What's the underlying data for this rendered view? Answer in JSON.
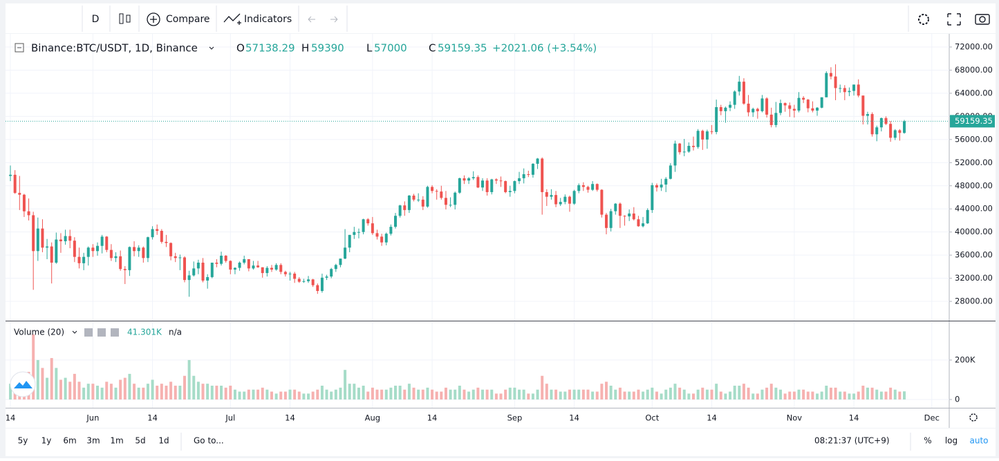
{
  "toolbar": {
    "interval": "D",
    "compare": "Compare",
    "indicators": "Indicators"
  },
  "chart_data": {
    "type": "candlestick",
    "symbol": "Binance:BTC/USDT, 1D, Binance",
    "legend_labels": {
      "open": "O",
      "high": "H",
      "low": "L",
      "close": "C"
    },
    "change": "+2021.06 (+3.54%)",
    "up_color": "#26a69a",
    "down_color": "#ef5350",
    "volume_up_color": "#a6dcc8",
    "volume_down_color": "#f6b1b0",
    "open": [
      49700,
      49900,
      46760,
      46450,
      43580,
      42900,
      36700,
      40600,
      37300,
      37500,
      34700,
      38700,
      38400,
      39300,
      38500,
      35700,
      34600,
      35700,
      37300,
      36700,
      37600,
      39200,
      36900,
      35500,
      35800,
      33600,
      33400,
      37400,
      36700,
      37300,
      35500,
      39100,
      40500,
      40200,
      38300,
      38100,
      35800,
      35500,
      35600,
      31700,
      32500,
      33700,
      34700,
      31600,
      32200,
      34700,
      34500,
      35900,
      35000,
      33500,
      33800,
      34700,
      35300,
      33700,
      34200,
      33900,
      32900,
      33800,
      33500,
      34300,
      33100,
      32700,
      32800,
      31900,
      31400,
      31500,
      31800,
      30800,
      29800,
      32100,
      32300,
      33600,
      34300,
      35400,
      37300,
      39500,
      40000,
      40000,
      42200,
      41500,
      39800,
      39200,
      38200,
      39700,
      40900,
      42800,
      44600,
      43800,
      46300,
      45600,
      45600,
      44400,
      47800,
      47100,
      47000,
      45900,
      44700,
      44700,
      46800,
      49300,
      48900,
      49300,
      49500,
      47700,
      48900,
      46900,
      49100,
      48900,
      48800,
      46900,
      47100,
      48800,
      49300,
      50000,
      49900,
      51800,
      52700,
      46900,
      46100,
      46400,
      44800,
      45200,
      46100,
      44900,
      47100,
      48100,
      47800,
      47300,
      48300,
      47300,
      43000,
      40700,
      43600,
      44900,
      42800,
      42700,
      43200,
      42200,
      41000,
      41500,
      43800,
      48100,
      47700,
      48200,
      49200,
      51500,
      55300,
      53800,
      53900,
      54900,
      54700,
      57500,
      56000,
      57400,
      57300,
      61600,
      60900,
      61500,
      62000,
      64300,
      66000,
      62200,
      60700,
      61300,
      60900,
      63100,
      60300,
      58500,
      60600,
      62300,
      61900,
      61300,
      61000,
      63200,
      62900,
      61400,
      61000,
      61500,
      63300,
      67500,
      66900,
      64900,
      64900,
      64200,
      64400,
      65500,
      63600,
      60100,
      60400,
      56900,
      58100,
      59700,
      58700,
      56300,
      57600,
      57138.29
    ],
    "high": [
      51500,
      50700,
      49700,
      46600,
      45800,
      43500,
      42500,
      42200,
      38800,
      38200,
      39900,
      39800,
      40400,
      40400,
      39100,
      37300,
      36400,
      37500,
      37900,
      38200,
      39500,
      39300,
      37900,
      36500,
      36800,
      34100,
      37500,
      38400,
      37700,
      37500,
      39200,
      41000,
      41300,
      40500,
      39500,
      38200,
      36400,
      36100,
      35800,
      33300,
      34900,
      35200,
      35500,
      32700,
      34700,
      35300,
      36600,
      36000,
      35100,
      33900,
      34900,
      35900,
      35300,
      35000,
      35000,
      33900,
      34100,
      34300,
      34600,
      34600,
      33300,
      33100,
      33100,
      32200,
      31900,
      32400,
      31900,
      31100,
      32800,
      32600,
      33800,
      34500,
      35400,
      40500,
      39500,
      40900,
      40600,
      42300,
      42400,
      42600,
      40400,
      39700,
      39900,
      41300,
      43300,
      44700,
      45300,
      46400,
      46600,
      46700,
      46200,
      48000,
      48100,
      47400,
      48000,
      47100,
      46000,
      47000,
      49400,
      49800,
      49500,
      50500,
      49800,
      49300,
      49300,
      49200,
      49300,
      49600,
      48900,
      48000,
      48900,
      50400,
      51000,
      50600,
      51900,
      52800,
      52900,
      47400,
      47400,
      47100,
      45900,
      46500,
      46300,
      47300,
      48400,
      48600,
      48000,
      48800,
      48400,
      47400,
      43300,
      44000,
      45000,
      45100,
      42900,
      43900,
      44300,
      42800,
      42600,
      44100,
      48500,
      48400,
      49200,
      49500,
      51900,
      55800,
      55400,
      56100,
      55500,
      56500,
      57800,
      57700,
      57700,
      58500,
      62900,
      62000,
      61700,
      62600,
      64500,
      67000,
      66600,
      63700,
      61500,
      61500,
      63700,
      63300,
      61500,
      62500,
      62900,
      62400,
      62400,
      62000,
      64200,
      63500,
      63000,
      62600,
      61600,
      63300,
      67800,
      68500,
      69000,
      65500,
      65400,
      65000,
      65500,
      66400,
      63600,
      60800,
      60700,
      58400,
      59800,
      60000,
      59200,
      57800,
      57800,
      59390
    ],
    "low": [
      48800,
      46600,
      43800,
      42600,
      42000,
      30000,
      35000,
      36500,
      35300,
      31100,
      34500,
      36400,
      37800,
      37200,
      34800,
      33700,
      33400,
      34200,
      35700,
      35900,
      36300,
      36500,
      35000,
      34800,
      33300,
      31000,
      32400,
      35800,
      35700,
      34700,
      34800,
      38700,
      39500,
      38000,
      37400,
      35100,
      34800,
      33400,
      31300,
      28800,
      32300,
      32700,
      31300,
      30200,
      32000,
      33900,
      34200,
      34700,
      32700,
      32700,
      33300,
      34400,
      33200,
      33500,
      33800,
      32100,
      32300,
      33100,
      33300,
      32700,
      32300,
      31600,
      31200,
      31200,
      31200,
      31200,
      30500,
      29300,
      29500,
      31700,
      32000,
      33100,
      33900,
      35300,
      36500,
      38800,
      38900,
      39600,
      41100,
      39500,
      38700,
      37600,
      37700,
      39400,
      40600,
      42500,
      42800,
      43300,
      45300,
      45200,
      43800,
      44200,
      46700,
      45600,
      45600,
      43900,
      44300,
      43900,
      46600,
      48300,
      48300,
      49000,
      47600,
      47100,
      46300,
      46500,
      48300,
      47800,
      46700,
      46100,
      46700,
      48300,
      48400,
      49500,
      49400,
      50900,
      43000,
      44500,
      45600,
      44300,
      44500,
      44800,
      43500,
      44700,
      46700,
      47100,
      46800,
      47100,
      47000,
      42500,
      39600,
      40100,
      43000,
      40700,
      41100,
      41900,
      42000,
      40900,
      40800,
      41400,
      43300,
      47000,
      47100,
      46900,
      49100,
      50400,
      53400,
      53100,
      53700,
      54100,
      54400,
      54200,
      54400,
      56900,
      56900,
      60200,
      58900,
      60900,
      61300,
      63600,
      62000,
      60000,
      59900,
      59600,
      60700,
      59800,
      58100,
      58100,
      60200,
      60800,
      59900,
      59800,
      60700,
      62300,
      60700,
      60700,
      60100,
      61400,
      63300,
      66400,
      62800,
      64100,
      62800,
      63500,
      63600,
      63300,
      58600,
      58600,
      56500,
      55700,
      57400,
      58500,
      55600,
      55900,
      55800,
      57000
    ],
    "close": [
      49900,
      46760,
      46450,
      43580,
      42900,
      36700,
      40600,
      37300,
      37500,
      34700,
      38700,
      38400,
      39300,
      38500,
      35700,
      34600,
      35700,
      37300,
      36700,
      37600,
      39200,
      36900,
      35500,
      35800,
      33600,
      33400,
      37400,
      36700,
      37300,
      35500,
      39100,
      40500,
      40200,
      38300,
      38100,
      35800,
      35500,
      35600,
      31700,
      32500,
      33700,
      34700,
      31600,
      32200,
      34700,
      34500,
      35900,
      35000,
      33500,
      33800,
      34700,
      35300,
      33700,
      34200,
      33900,
      32900,
      33800,
      33500,
      34300,
      33100,
      32700,
      32800,
      31900,
      31400,
      31500,
      31800,
      30800,
      29800,
      32100,
      32300,
      33600,
      34300,
      35400,
      37300,
      39500,
      40000,
      40000,
      42200,
      41500,
      39800,
      39200,
      38200,
      39700,
      40900,
      42800,
      44600,
      43800,
      46300,
      45600,
      45600,
      44400,
      47800,
      47100,
      47000,
      45900,
      44700,
      44700,
      46800,
      49300,
      48900,
      49300,
      49500,
      47700,
      48900,
      46900,
      49100,
      48900,
      48800,
      46900,
      47100,
      48800,
      49300,
      50000,
      49900,
      51800,
      52700,
      46900,
      46100,
      46400,
      44800,
      45200,
      46100,
      44900,
      47100,
      48100,
      47800,
      47300,
      48300,
      47300,
      43000,
      40700,
      43600,
      44900,
      42800,
      42700,
      43200,
      42200,
      41000,
      41500,
      43800,
      48100,
      47700,
      48200,
      49200,
      51500,
      55300,
      53800,
      53900,
      54900,
      54700,
      57500,
      56000,
      57400,
      57300,
      61600,
      60900,
      61500,
      62000,
      64300,
      66000,
      62200,
      60700,
      61300,
      60900,
      63100,
      60300,
      58500,
      60600,
      62300,
      61900,
      61300,
      61000,
      63200,
      62900,
      61400,
      61000,
      61500,
      63300,
      67500,
      66900,
      64900,
      64900,
      64200,
      64400,
      65500,
      63600,
      60100,
      60400,
      56900,
      58100,
      59700,
      58700,
      56300,
      57600,
      57138.29,
      59159.35
    ],
    "volume": [
      80000,
      110000,
      90000,
      120000,
      140000,
      330000,
      200000,
      160000,
      110000,
      210000,
      160000,
      100000,
      110000,
      90000,
      130000,
      90000,
      60000,
      80000,
      80000,
      70000,
      60000,
      90000,
      80000,
      60000,
      100000,
      110000,
      130000,
      80000,
      60000,
      60000,
      80000,
      100000,
      70000,
      80000,
      70000,
      90000,
      70000,
      70000,
      120000,
      200000,
      120000,
      90000,
      80000,
      80000,
      70000,
      70000,
      70000,
      60000,
      70000,
      50000,
      40000,
      40000,
      50000,
      50000,
      50000,
      60000,
      50000,
      40000,
      30000,
      40000,
      40000,
      50000,
      50000,
      40000,
      30000,
      30000,
      40000,
      50000,
      70000,
      50000,
      40000,
      50000,
      60000,
      150000,
      80000,
      80000,
      60000,
      70000,
      40000,
      60000,
      50000,
      50000,
      50000,
      60000,
      70000,
      70000,
      50000,
      80000,
      60000,
      50000,
      50000,
      60000,
      50000,
      40000,
      40000,
      60000,
      50000,
      50000,
      70000,
      50000,
      40000,
      50000,
      60000,
      50000,
      50000,
      50000,
      30000,
      30000,
      50000,
      60000,
      60000,
      50000,
      50000,
      30000,
      30000,
      50000,
      120000,
      80000,
      50000,
      50000,
      40000,
      40000,
      50000,
      50000,
      50000,
      50000,
      50000,
      40000,
      40000,
      80000,
      90000,
      70000,
      50000,
      60000,
      40000,
      40000,
      40000,
      50000,
      40000,
      50000,
      60000,
      40000,
      30000,
      50000,
      60000,
      80000,
      60000,
      50000,
      30000,
      30000,
      50000,
      60000,
      50000,
      50000,
      80000,
      40000,
      30000,
      40000,
      70000,
      70000,
      80000,
      60000,
      30000,
      30000,
      50000,
      60000,
      80000,
      60000,
      50000,
      30000,
      40000,
      40000,
      50000,
      50000,
      40000,
      40000,
      30000,
      40000,
      70000,
      60000,
      60000,
      40000,
      40000,
      30000,
      30000,
      40000,
      70000,
      60000,
      60000,
      50000,
      40000,
      40000,
      60000,
      50000,
      40000,
      41301
    ],
    "ylim": [
      24660,
      74270
    ],
    "yticks": [
      {
        "value": 28000,
        "label": "28000.00"
      },
      {
        "value": 32000,
        "label": "32000.00"
      },
      {
        "value": 36000,
        "label": "36000.00"
      },
      {
        "value": 40000,
        "label": "40000.00"
      },
      {
        "value": 44000,
        "label": "44000.00"
      },
      {
        "value": 48000,
        "label": "48000.00"
      },
      {
        "value": 52000,
        "label": "52000.00"
      },
      {
        "value": 56000,
        "label": "56000.00"
      },
      {
        "value": 60000,
        "label": "60000.00"
      },
      {
        "value": 64000,
        "label": "64000.00"
      },
      {
        "value": 68000,
        "label": "68000.00"
      },
      {
        "value": 72000,
        "label": "72000.00"
      }
    ],
    "xlim": [
      -1.06,
      204.8
    ],
    "xticks": [
      {
        "value": 0,
        "label": "14"
      },
      {
        "value": 18,
        "label": "Jun"
      },
      {
        "value": 31,
        "label": "14"
      },
      {
        "value": 48,
        "label": "Jul"
      },
      {
        "value": 61,
        "label": "14"
      },
      {
        "value": 79,
        "label": "Aug"
      },
      {
        "value": 92,
        "label": "14"
      },
      {
        "value": 110,
        "label": "Sep"
      },
      {
        "value": 123,
        "label": "14"
      },
      {
        "value": 140,
        "label": "Oct"
      },
      {
        "value": 153,
        "label": "14"
      },
      {
        "value": 171,
        "label": "Nov"
      },
      {
        "value": 184,
        "label": "14"
      },
      {
        "value": 201,
        "label": "Dec"
      }
    ],
    "grid": true,
    "last_price_line": true,
    "volume_title": "Volume (20)",
    "volume_value_label": "41.301K",
    "volume_ma": "n/a",
    "volume_ylim": [
      0,
      396000
    ],
    "volume_yticks": [
      {
        "value": 0,
        "label": "0"
      },
      {
        "value": 200000,
        "label": "200K"
      }
    ]
  },
  "bottom_bar": {
    "ranges": [
      "5y",
      "1y",
      "6m",
      "3m",
      "1m",
      "5d",
      "1d"
    ],
    "goto": "Go to...",
    "time": "08:21:37 (UTC+9)",
    "percent": "%",
    "log": "log",
    "auto": "auto"
  }
}
